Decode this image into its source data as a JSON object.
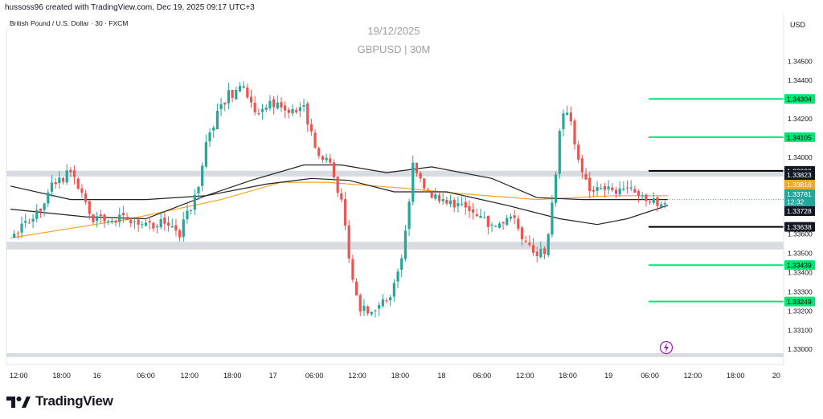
{
  "header": {
    "byline": "hussoss96 created with TradingView.com, Dec 19, 2025 09:17 UTC+3",
    "symbol": "British Pound / U.S. Dollar · 30 · FXCM",
    "currency": "USD"
  },
  "watermark": {
    "date": "19/12/2025",
    "title": "GBPUSD | 30M"
  },
  "brand": {
    "name": "TradingView"
  },
  "colors": {
    "up": "#26a69a",
    "down": "#ef5350",
    "ma_orange": "#f5a623",
    "ma_black": "#222222",
    "level_green": "#00e676",
    "zone": "#d8dbe0"
  },
  "chart_data": {
    "type": "candlestick",
    "symbol": "GBPUSD",
    "timeframe": "30M",
    "y_axis": {
      "min": 1.3293,
      "max": 1.3466,
      "ticks": [
        "1.34500",
        "1.34400",
        "1.34200",
        "1.34000",
        "1.33600",
        "1.33500",
        "1.33400",
        "1.33300",
        "1.33200",
        "1.33100",
        "1.33000"
      ]
    },
    "x_axis": {
      "labels": [
        {
          "label": "12:00",
          "t": 0.55
        },
        {
          "label": "18:00",
          "t": 3.4
        },
        {
          "label": "16",
          "t": 5.75
        },
        {
          "label": "06:00",
          "t": 9.0
        },
        {
          "label": "12:00",
          "t": 11.9
        },
        {
          "label": "18:00",
          "t": 14.75
        },
        {
          "label": "17",
          "t": 17.45
        },
        {
          "label": "06:00",
          "t": 20.2
        },
        {
          "label": "12:00",
          "t": 23.05
        },
        {
          "label": "18:00",
          "t": 25.9
        },
        {
          "label": "18",
          "t": 28.65
        },
        {
          "label": "06:00",
          "t": 31.35
        },
        {
          "label": "12:00",
          "t": 34.2
        },
        {
          "label": "18:00",
          "t": 37.05
        },
        {
          "label": "19",
          "t": 39.75
        },
        {
          "label": "06:00",
          "t": 42.5
        },
        {
          "label": "12:00",
          "t": 45.35
        },
        {
          "label": "18:00",
          "t": 48.2
        },
        {
          "label": "20",
          "t": 50.9
        }
      ]
    },
    "price_path": [
      [
        0,
        1.3359
      ],
      [
        1.5,
        1.3367
      ],
      [
        2.5,
        1.3382
      ],
      [
        4,
        1.3393
      ],
      [
        5.5,
        1.3369
      ],
      [
        7,
        1.3368
      ],
      [
        8.5,
        1.3366
      ],
      [
        10,
        1.3365
      ],
      [
        11.2,
        1.3359
      ],
      [
        12.3,
        1.338
      ],
      [
        13.2,
        1.3412
      ],
      [
        14.3,
        1.3431
      ],
      [
        15.4,
        1.3438
      ],
      [
        16.3,
        1.342
      ],
      [
        17.2,
        1.3428
      ],
      [
        18.3,
        1.3424
      ],
      [
        19.5,
        1.3425
      ],
      [
        20.3,
        1.3404
      ],
      [
        21.2,
        1.3398
      ],
      [
        22,
        1.3377
      ],
      [
        22.6,
        1.334
      ],
      [
        23.3,
        1.332
      ],
      [
        24.2,
        1.3322
      ],
      [
        25.2,
        1.3327
      ],
      [
        26.1,
        1.335
      ],
      [
        26.8,
        1.3398
      ],
      [
        27.6,
        1.3385
      ],
      [
        28.4,
        1.3377
      ],
      [
        29.3,
        1.3376
      ],
      [
        30.2,
        1.3372
      ],
      [
        31.2,
        1.3367
      ],
      [
        32.2,
        1.3366
      ],
      [
        33.3,
        1.337
      ],
      [
        34.2,
        1.3356
      ],
      [
        34.8,
        1.3347
      ],
      [
        35.5,
        1.3351
      ],
      [
        36.1,
        1.3378
      ],
      [
        36.6,
        1.3424
      ],
      [
        37.2,
        1.3419
      ],
      [
        37.8,
        1.3397
      ],
      [
        38.5,
        1.3381
      ],
      [
        39.3,
        1.3384
      ],
      [
        40.5,
        1.3381
      ],
      [
        41.7,
        1.3382
      ],
      [
        42.6,
        1.3377
      ],
      [
        43.2,
        1.3376
      ],
      [
        43.7,
        1.3378
      ]
    ],
    "moving_averages": [
      {
        "color": "#f5a623",
        "points": [
          [
            0,
            1.3358
          ],
          [
            8,
            1.3368
          ],
          [
            14,
            1.3378
          ],
          [
            18,
            1.3387
          ],
          [
            21,
            1.3387
          ],
          [
            26,
            1.3384
          ],
          [
            30,
            1.3381
          ],
          [
            35,
            1.3378
          ],
          [
            40,
            1.338
          ],
          [
            43.7,
            1.338
          ]
        ]
      },
      {
        "color": "#222222",
        "points": [
          [
            0,
            1.3385
          ],
          [
            4,
            1.3378
          ],
          [
            9,
            1.3378
          ],
          [
            13,
            1.338
          ],
          [
            16,
            1.3388
          ],
          [
            19.5,
            1.3396
          ],
          [
            22,
            1.3396
          ],
          [
            25,
            1.3392
          ],
          [
            28,
            1.3395
          ],
          [
            32,
            1.3389
          ],
          [
            35,
            1.3379
          ],
          [
            38,
            1.3378
          ],
          [
            42,
            1.3378
          ],
          [
            43.7,
            1.3378
          ]
        ]
      },
      {
        "color": "#222222",
        "points": [
          [
            0,
            1.3373
          ],
          [
            5,
            1.3369
          ],
          [
            9,
            1.3368
          ],
          [
            13,
            1.338
          ],
          [
            17,
            1.3386
          ],
          [
            20,
            1.3389
          ],
          [
            22.5,
            1.3388
          ],
          [
            25.5,
            1.3382
          ],
          [
            29,
            1.3382
          ],
          [
            33,
            1.3375
          ],
          [
            36.5,
            1.3368
          ],
          [
            39,
            1.3365
          ],
          [
            41,
            1.3368
          ],
          [
            43.7,
            1.3375
          ]
        ]
      }
    ],
    "zones": [
      [
        1.339,
        1.3393
      ],
      [
        1.3352,
        1.3356
      ],
      [
        1.3296,
        1.3298
      ]
    ],
    "levels": [
      {
        "value": "1.34304",
        "price": 1.34304,
        "color": "#00e676"
      },
      {
        "value": "1.34105",
        "price": 1.34105,
        "color": "#00e676"
      },
      {
        "value": "1.33929",
        "price": 1.33929,
        "color": "#000000"
      },
      {
        "value": "1.33638",
        "price": 1.33638,
        "color": "#000000"
      },
      {
        "value": "1.33439",
        "price": 1.33439,
        "color": "#00e676"
      },
      {
        "value": "1.33249",
        "price": 1.33249,
        "color": "#00e676"
      }
    ],
    "price_tags": [
      {
        "value": "1.33823",
        "price": 1.33823,
        "bg": "#131722",
        "fg": "#ffffff"
      },
      {
        "value": "1.33816",
        "price": 1.33816,
        "bg": "#f5a623",
        "fg": "#ffffff"
      },
      {
        "value": "1.33781",
        "sub": "12:32",
        "price": 1.33781,
        "bg": "#26a69a",
        "fg": "#ffffff"
      },
      {
        "value": "1.33728",
        "price": 1.33728,
        "bg": "#131722",
        "fg": "#ffffff"
      }
    ]
  }
}
